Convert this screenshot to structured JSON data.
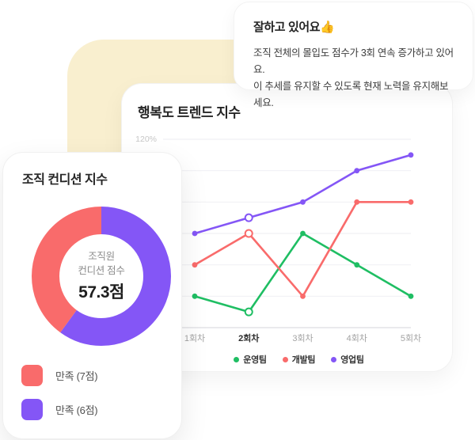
{
  "colors": {
    "yellow_backdrop": "#F9EFCF",
    "green": "#1FBE63",
    "red": "#F96B6B",
    "purple": "#8456F6",
    "grid": "#F1F1F4",
    "axis": "#E3E3E7"
  },
  "tooltip_card": {
    "title": "잘하고 있어요",
    "title_icon": "👍",
    "body_line1": "조직 전체의 몰입도 점수가 3회 연속 증가하고 있어요.",
    "body_line2": "이 추세를 유지할 수 있도록 현재 노력을 유지해보세요."
  },
  "trend_card": {
    "title": "행복도 트렌드 지수",
    "y_top_tick": "120%"
  },
  "condition_card": {
    "title": "조직 컨디션 지수",
    "center_line1": "조직원",
    "center_line2": "컨디션 점수",
    "center_value": "57.3점",
    "legend": [
      {
        "label": "만족 (7점)",
        "color": "#F96B6B"
      },
      {
        "label": "만족 (6점)",
        "color": "#8456F6"
      }
    ]
  },
  "chart_data": [
    {
      "type": "line",
      "title": "행복도 트렌드 지수",
      "categories": [
        "1회차",
        "2회차",
        "3회차",
        "4회차",
        "5회차"
      ],
      "series": [
        {
          "name": "운영팀",
          "color": "#1FBE63",
          "values": [
            20,
            10,
            60,
            40,
            20
          ]
        },
        {
          "name": "개발팀",
          "color": "#F96B6B",
          "values": [
            40,
            60,
            20,
            80,
            80
          ]
        },
        {
          "name": "영업팀",
          "color": "#8456F6",
          "values": [
            60,
            70,
            80,
            100,
            110
          ]
        }
      ],
      "ylabel": "%",
      "ylim": [
        0,
        120
      ],
      "gridline_values": [
        120,
        100,
        80,
        60,
        40,
        20
      ],
      "visible_tick_label": "120%",
      "highlight_index": 1,
      "grid": true,
      "legend_position": "bottom"
    },
    {
      "type": "pie",
      "variant": "donut",
      "title": "조직 컨디션 지수",
      "center_text": [
        "조직원",
        "컨디션 점수",
        "57.3점"
      ],
      "slices": [
        {
          "label": "만족 (6점)",
          "color": "#8456F6",
          "value": 60
        },
        {
          "label": "만족 (7점)",
          "color": "#F96B6B",
          "value": 40
        }
      ]
    }
  ]
}
